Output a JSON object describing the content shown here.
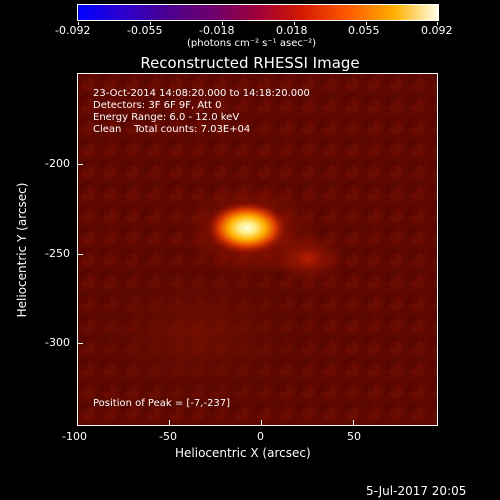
{
  "colorbar": {
    "tick_labels": [
      "-0.092",
      "-0.055",
      "-0.018",
      "0.018",
      "0.055",
      "0.092"
    ],
    "units": "(photons cm⁻² s⁻¹ asec⁻²)"
  },
  "title": "Reconstructed RHESSI Image",
  "annotations": {
    "time_range": "23-Oct-2014 14:08:20.000 to 14:18:20.000",
    "detectors": "Detectors: 3F 6F 9F, Att 0",
    "energy_range": "Energy Range: 6.0 - 12.0 keV",
    "clean_counts": "Clean    Total counts: 7.03E+04",
    "peak": "Position of Peak = [-7,-237]"
  },
  "axes": {
    "xlabel": "Heliocentric X (arcsec)",
    "ylabel": "Heliocentric Y (arcsec)",
    "xticks": [
      "-100",
      "-50",
      "0",
      "50"
    ],
    "yticks": [
      "-200",
      "-250",
      "-300"
    ]
  },
  "footer": {
    "date": "5-Jul-2017 20:05"
  },
  "colors": {
    "background": "#000000",
    "foreground": "#ffffff"
  }
}
